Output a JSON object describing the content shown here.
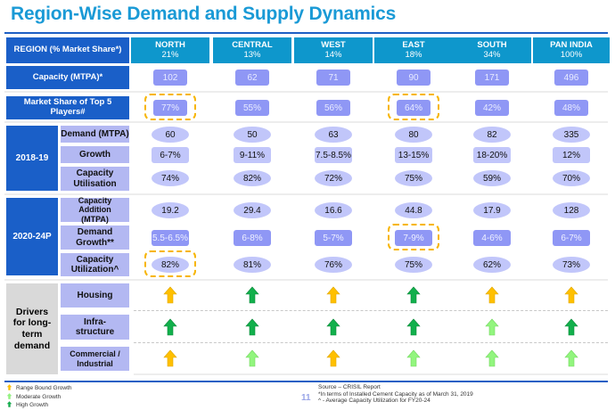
{
  "title": "Region-Wise Demand and Supply Dynamics",
  "header": {
    "label": "REGION (% Market Share*)",
    "regions": [
      {
        "name": "NORTH",
        "share": "21%"
      },
      {
        "name": "CENTRAL",
        "share": "13%"
      },
      {
        "name": "WEST",
        "share": "14%"
      },
      {
        "name": "EAST",
        "share": "18%"
      },
      {
        "name": "SOUTH",
        "share": "34%"
      },
      {
        "name": "PAN INDIA",
        "share": "100%"
      }
    ]
  },
  "capacity": {
    "label": "Capacity (MTPA)*",
    "values": [
      "102",
      "62",
      "71",
      "90",
      "171",
      "496"
    ]
  },
  "top5": {
    "label": "Market Share of Top 5 Players#",
    "values": [
      "77%",
      "55%",
      "56%",
      "64%",
      "42%",
      "48%"
    ],
    "highlighted": [
      "NORTH",
      "EAST"
    ]
  },
  "period1": {
    "label": "2018-19",
    "rows": [
      {
        "label": "Demand (MTPA)",
        "values": [
          "60",
          "50",
          "63",
          "80",
          "82",
          "335"
        ]
      },
      {
        "label": "Growth",
        "values": [
          "6-7%",
          "9-11%",
          "7.5-8.5%",
          "13-15%",
          "18-20%",
          "12%"
        ]
      },
      {
        "label": "Capacity Utilisation",
        "values": [
          "74%",
          "82%",
          "72%",
          "75%",
          "59%",
          "70%"
        ]
      }
    ]
  },
  "period2": {
    "label": "2020-24P",
    "rows": [
      {
        "label": "Capacity Addition (MTPA)",
        "values": [
          "19.2",
          "29.4",
          "16.6",
          "44.8",
          "17.9",
          "128"
        ]
      },
      {
        "label": "Demand Growth**",
        "values": [
          "5.5-6.5%",
          "6-8%",
          "5-7%",
          "7-9%",
          "4-6%",
          "6-7%"
        ],
        "highlighted": [
          "EAST"
        ]
      },
      {
        "label": "Capacity Utilization^",
        "values": [
          "82%",
          "81%",
          "76%",
          "75%",
          "62%",
          "73%"
        ],
        "highlighted": [
          "NORTH"
        ]
      }
    ]
  },
  "drivers": {
    "label": "Drivers for long-term demand",
    "rows": [
      {
        "label": "Housing",
        "values": [
          "range",
          "high",
          "range",
          "high",
          "range",
          "range"
        ]
      },
      {
        "label": "Infra-structure",
        "values": [
          "high",
          "high",
          "high",
          "high",
          "moderate",
          "high"
        ]
      },
      {
        "label": "Commercial / Industrial",
        "values": [
          "range",
          "moderate",
          "range",
          "moderate",
          "moderate",
          "moderate"
        ]
      }
    ]
  },
  "legend": [
    {
      "key": "range",
      "label": "Range Bound Growth",
      "color": "#ffc000"
    },
    {
      "key": "moderate",
      "label": "Moderate Growth",
      "color": "#92f57e"
    },
    {
      "key": "high",
      "label": "High Growth",
      "color": "#12b04c"
    }
  ],
  "colors": {
    "title": "#1a9ad6",
    "header_bg": "#0e97cc",
    "label_bg": "#1a5fc8",
    "highlight": "#f7b500"
  },
  "page_number": "11",
  "notes": [
    "Source – CRISIL Report",
    "*In terms of Installed Cement Capacity as of March 31, 2019",
    "^ - Average Capacity Utilization for FY20-24"
  ]
}
